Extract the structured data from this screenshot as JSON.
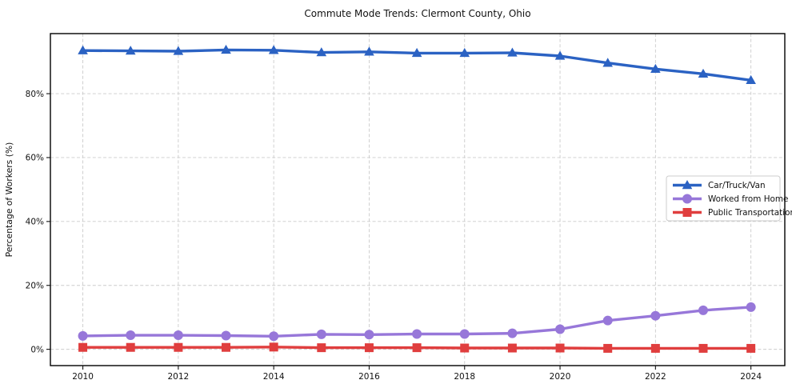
{
  "chart_data": {
    "type": "line",
    "title": "Commute Mode Trends: Clermont County, Ohio",
    "xlabel": "",
    "ylabel": "Percentage of Workers (%)",
    "x": [
      2010,
      2011,
      2012,
      2013,
      2014,
      2015,
      2016,
      2017,
      2018,
      2019,
      2020,
      2021,
      2022,
      2023,
      2024
    ],
    "series": [
      {
        "name": "Car/Truck/Van",
        "color": "#2b62c3",
        "marker": "triangle",
        "values": [
          93.5,
          93.4,
          93.3,
          93.7,
          93.6,
          92.9,
          93.1,
          92.7,
          92.7,
          92.8,
          91.8,
          89.6,
          87.7,
          86.2,
          84.2
        ]
      },
      {
        "name": "Worked from Home",
        "color": "#9777d9",
        "marker": "circle",
        "values": [
          4.2,
          4.4,
          4.4,
          4.3,
          4.1,
          4.7,
          4.6,
          4.8,
          4.8,
          5.0,
          6.3,
          9.0,
          10.5,
          12.2,
          13.2
        ]
      },
      {
        "name": "Public Transportation",
        "color": "#e03e3e",
        "marker": "square",
        "values": [
          0.6,
          0.6,
          0.6,
          0.6,
          0.7,
          0.5,
          0.5,
          0.5,
          0.4,
          0.4,
          0.4,
          0.3,
          0.3,
          0.3,
          0.3
        ]
      }
    ],
    "xticks": {
      "values": [
        2010,
        2012,
        2014,
        2016,
        2018,
        2020,
        2022,
        2024
      ],
      "labels": [
        "2010",
        "2012",
        "2014",
        "2016",
        "2018",
        "2020",
        "2022",
        "2024"
      ]
    },
    "yticks": {
      "values": [
        0,
        20,
        40,
        60,
        80
      ],
      "labels": [
        "0%",
        "20%",
        "40%",
        "60%",
        "80%"
      ]
    },
    "xlim": [
      2009.32,
      2024.71
    ],
    "ylim": [
      -5.1,
      98.8
    ],
    "grid": true,
    "legend": {
      "position": "right-center",
      "entries": [
        "Car/Truck/Van",
        "Worked from Home",
        "Public Transportation"
      ]
    }
  }
}
